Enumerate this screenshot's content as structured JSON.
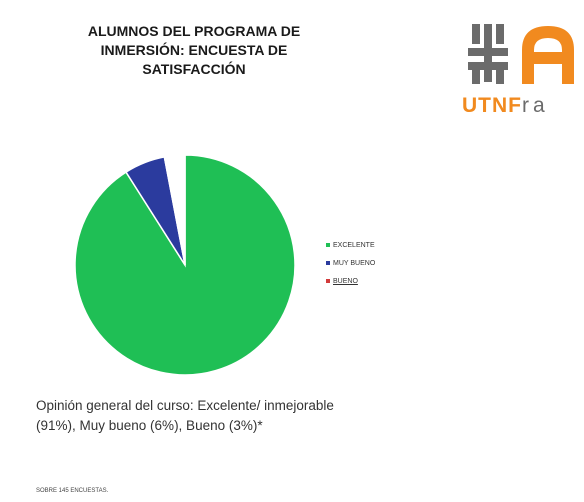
{
  "header": {
    "title_lines": [
      "ALUMNOS DEL PROGRAMA DE",
      "INMERSIÓN: ENCUESTA DE",
      "SATISFACCIÓN"
    ]
  },
  "logo": {
    "text_accent": "UTNF",
    "text_rest": "ra",
    "colors": {
      "accent": "#f18a1f",
      "gray": "#6b6b6b"
    }
  },
  "chart_data": {
    "type": "pie",
    "categories": [
      "EXCELENTE",
      "MUY BUENO",
      "BUENO"
    ],
    "values": [
      91,
      6,
      3
    ],
    "colors": [
      "#1fbf55",
      "#2b3b9e",
      "#ffffff"
    ],
    "title": "",
    "legend_position": "right"
  },
  "caption": "Opinión general del curso: Excelente/ inmejorable (91%), Muy bueno (6%), Bueno (3%)*",
  "footnote": "SOBRE 145 ENCUESTAS."
}
